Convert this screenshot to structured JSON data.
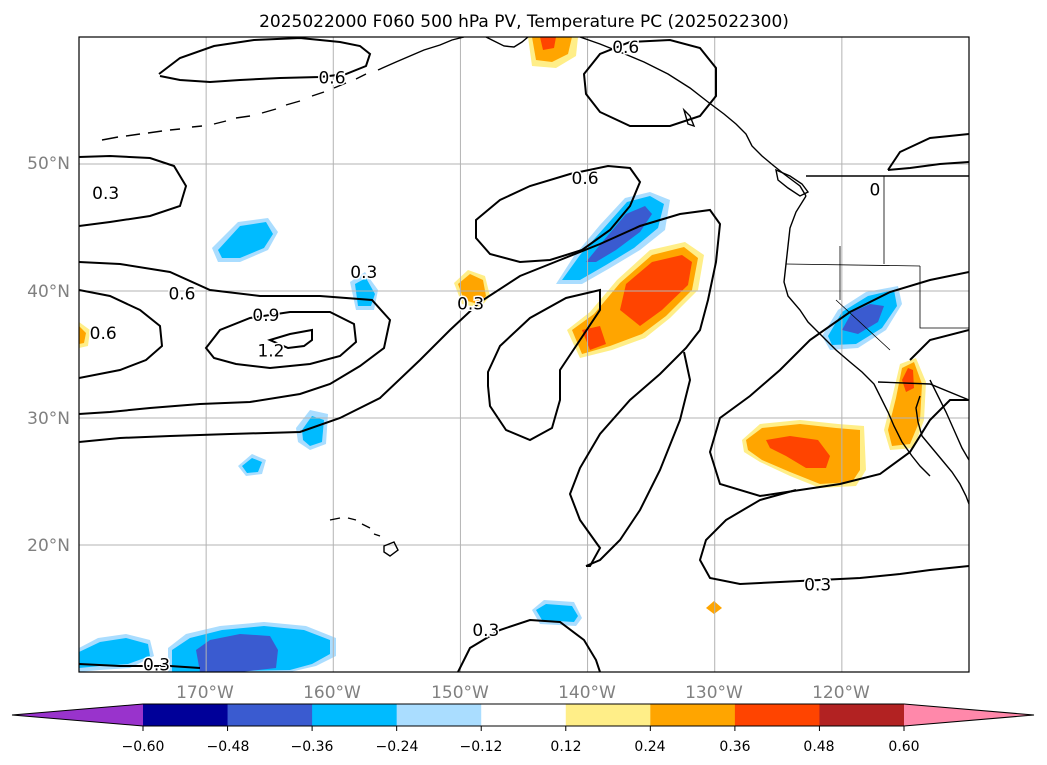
{
  "title": "2025022000 F060 500 hPa PV, Temperature PC (2025022300)",
  "map": {
    "lon_range": [
      -180,
      -110
    ],
    "lat_range": [
      10,
      60
    ],
    "grid_lons": [
      -170,
      -160,
      -150,
      -140,
      -130,
      -120
    ],
    "grid_lats": [
      20,
      30,
      40,
      50
    ],
    "lon_labels": [
      "170°W",
      "160°W",
      "150°W",
      "140°W",
      "130°W",
      "120°W"
    ],
    "lat_labels": [
      "20°N",
      "30°N",
      "40°N",
      "50°N"
    ],
    "contour_labels": [
      {
        "text": "0.6",
        "lon": -160.1,
        "lat": 56.8
      },
      {
        "text": "0.6",
        "lon": -140.2,
        "lat": 48.9
      },
      {
        "text": "0.3",
        "lon": -177.9,
        "lat": 47.7
      },
      {
        "text": "0.3",
        "lon": -157.6,
        "lat": 41.5
      },
      {
        "text": "0.6",
        "lon": -171.9,
        "lat": 39.8
      },
      {
        "text": "0.9",
        "lon": -165.3,
        "lat": 38.1
      },
      {
        "text": "0.6",
        "lon": -178.1,
        "lat": 36.7
      },
      {
        "text": "1.2",
        "lon": -164.9,
        "lat": 35.3
      },
      {
        "text": "0.3",
        "lon": -149.2,
        "lat": 39.0
      },
      {
        "text": "0.3",
        "lon": -121.9,
        "lat": 16.9
      },
      {
        "text": "0.3",
        "lon": -148.0,
        "lat": 13.3
      },
      {
        "text": "0.3",
        "lon": -173.9,
        "lat": 10.6
      },
      {
        "text": "0.6",
        "lon": -137.0,
        "lat": 59.2
      },
      {
        "text": "0",
        "lon": -117.4,
        "lat": 48.0
      }
    ]
  },
  "colorbar": {
    "ticks": [
      "−0.60",
      "−0.48",
      "−0.36",
      "−0.24",
      "−0.12",
      "0.12",
      "0.24",
      "0.36",
      "0.48",
      "0.60"
    ],
    "levels": [
      -0.6,
      -0.48,
      -0.36,
      -0.24,
      -0.12,
      0.12,
      0.24,
      0.36,
      0.48,
      0.6
    ],
    "colors": [
      "#9933CC",
      "#000099",
      "#3A5BD0",
      "#00BBFF",
      "#AADDFF",
      "#FFFFFF",
      "#FFEE88",
      "#FFA500",
      "#FF4400",
      "#B22222",
      "#FF88AA"
    ]
  }
}
